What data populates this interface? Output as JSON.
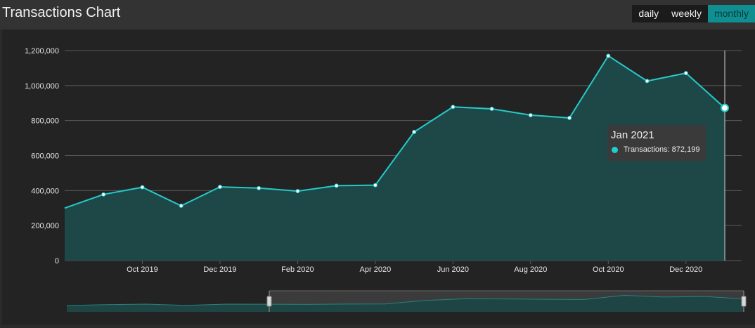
{
  "header": {
    "title": "Transactions Chart",
    "ranges": [
      {
        "label": "daily",
        "active": false
      },
      {
        "label": "weekly",
        "active": false
      },
      {
        "label": "monthly",
        "active": true
      }
    ]
  },
  "colors": {
    "line": "#25c9c9",
    "area": "#1e4848",
    "grid": "#5a5a5a",
    "axis_text": "#e8e8e8",
    "active_range": "#0f8f92"
  },
  "tooltip": {
    "title": "Jan 2021",
    "series_label": "Transactions: 872,199"
  },
  "chart_data": {
    "type": "area",
    "series": [
      {
        "name": "Transactions",
        "x": [
          "2019-08",
          "2019-09",
          "2019-10",
          "2019-11",
          "2019-12",
          "2020-01",
          "2020-02",
          "2020-03",
          "2020-04",
          "2020-05",
          "2020-06",
          "2020-07",
          "2020-08",
          "2020-09",
          "2020-10",
          "2020-11",
          "2020-12",
          "2021-01"
        ],
        "values": [
          300000,
          378000,
          419000,
          313000,
          421000,
          414000,
          397000,
          428000,
          431000,
          735000,
          878000,
          867000,
          831000,
          815000,
          1170000,
          1026000,
          1071000,
          872199
        ]
      }
    ],
    "y_ticks": [
      "0",
      "200,000",
      "400,000",
      "600,000",
      "800,000",
      "1,000,000",
      "1,200,000"
    ],
    "x_ticks": [
      "Oct 2019",
      "Dec 2019",
      "Feb 2020",
      "Apr 2020",
      "Jun 2020",
      "Aug 2020",
      "Oct 2020",
      "Dec 2020"
    ],
    "ylim": [
      0,
      1200000
    ],
    "grid": true,
    "highlighted_point": "2021-01",
    "navigator": true
  }
}
